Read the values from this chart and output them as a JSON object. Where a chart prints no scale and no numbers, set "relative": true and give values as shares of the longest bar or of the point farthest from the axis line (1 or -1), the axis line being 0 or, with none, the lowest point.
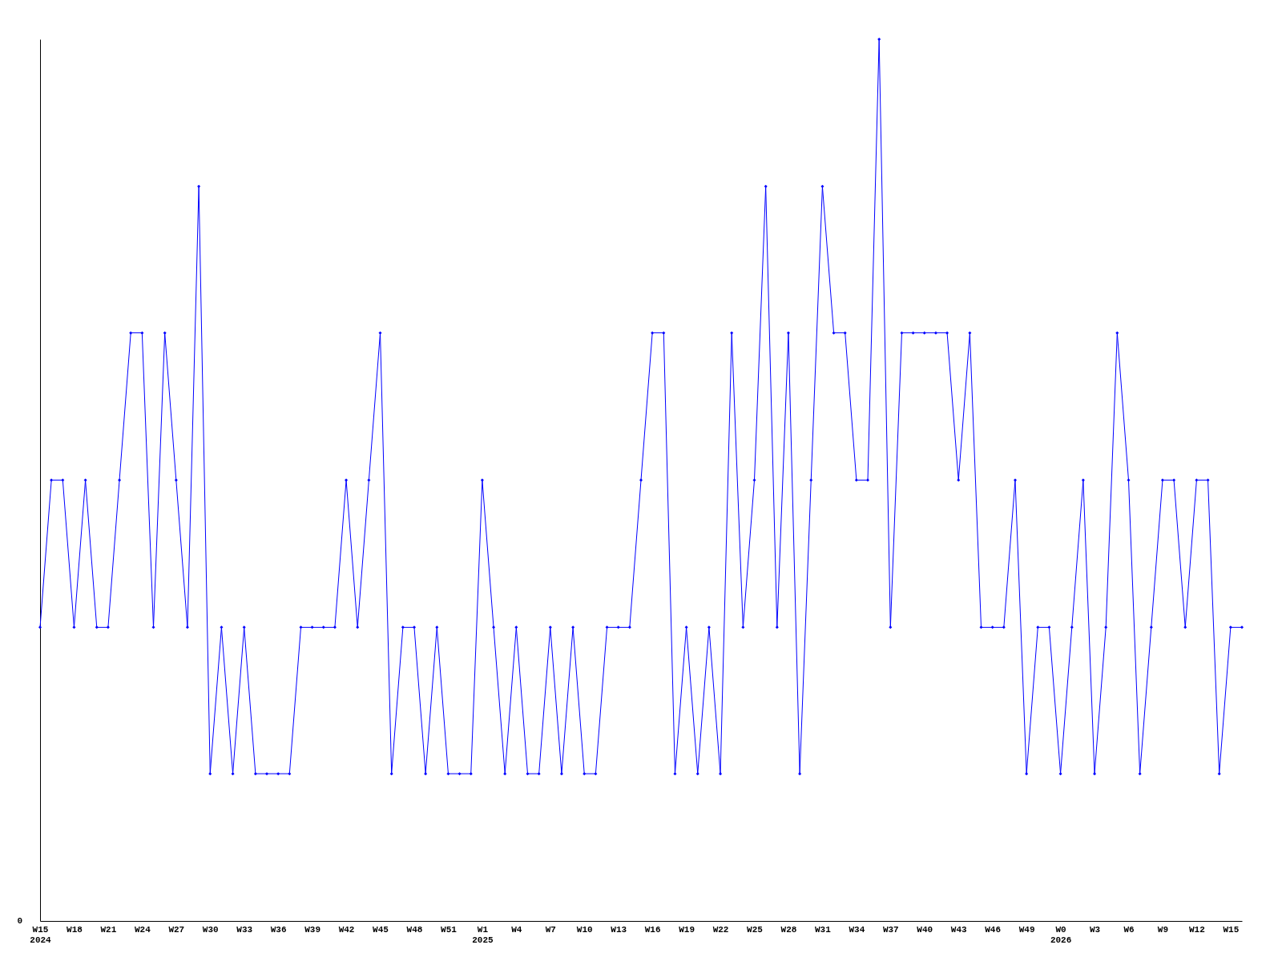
{
  "chart_data": {
    "type": "line",
    "relative": true,
    "marker": "diamond",
    "line_style": "solid",
    "grid": false,
    "tick_labels": "x",
    "annotations": [
      "0"
    ],
    "categories": [
      "W15\n2024",
      null,
      null,
      "W18",
      null,
      null,
      "W21",
      null,
      null,
      "W24",
      null,
      null,
      "W27",
      null,
      null,
      "W30",
      null,
      null,
      "W33",
      null,
      null,
      "W36",
      null,
      null,
      "W39",
      null,
      null,
      "W42",
      null,
      null,
      "W45",
      null,
      null,
      "W48",
      null,
      null,
      "W51",
      null,
      null,
      "W1\n2025",
      null,
      null,
      "W4",
      null,
      null,
      "W7",
      null,
      null,
      "W10",
      null,
      null,
      "W13",
      null,
      null,
      "W16",
      null,
      null,
      "W19",
      null,
      null,
      "W22",
      null,
      null,
      "W25",
      null,
      null,
      "W28",
      null,
      null,
      "W31",
      null,
      null,
      "W34",
      null,
      null,
      "W37",
      null,
      null,
      "W40",
      null,
      null,
      "W43",
      null,
      null,
      "W46",
      null,
      null,
      "W49",
      null,
      null,
      "W0\n2026",
      null,
      null,
      "W3",
      null,
      null,
      "W6",
      null,
      null,
      "W9",
      null,
      null,
      "W12",
      null,
      null,
      "W15",
      null
    ],
    "series": [
      {
        "color": "#0000ff",
        "values": [
          0.333,
          0.5,
          0.5,
          0.333,
          0.5,
          0.333,
          0.333,
          0.5,
          0.667,
          0.667,
          0.333,
          0.667,
          0.5,
          0.333,
          0.833,
          0.167,
          0.333,
          0.167,
          0.333,
          0.167,
          0.167,
          0.167,
          0.167,
          0.333,
          0.333,
          0.333,
          0.333,
          0.5,
          0.333,
          0.5,
          0.667,
          0.167,
          0.333,
          0.333,
          0.167,
          0.333,
          0.167,
          0.167,
          0.167,
          0.5,
          0.333,
          0.167,
          0.333,
          0.167,
          0.167,
          0.333,
          0.167,
          0.333,
          0.167,
          0.167,
          0.333,
          0.333,
          0.333,
          0.5,
          0.667,
          0.667,
          0.167,
          0.333,
          0.167,
          0.333,
          0.167,
          0.667,
          0.333,
          0.5,
          0.833,
          0.333,
          0.667,
          0.167,
          0.5,
          0.833,
          0.667,
          0.667,
          0.5,
          0.5,
          1,
          0.333,
          0.667,
          0.667,
          0.667,
          0.667,
          0.667,
          0.5,
          0.667,
          0.333,
          0.333,
          0.333,
          0.5,
          0.167,
          0.333,
          0.333,
          0.167,
          0.333,
          0.5,
          0.167,
          0.333,
          0.667,
          0.5,
          0.167,
          0.333,
          0.5,
          0.5,
          0.333,
          0.5,
          0.5,
          0.167,
          0.333,
          0.333
        ]
      }
    ]
  }
}
